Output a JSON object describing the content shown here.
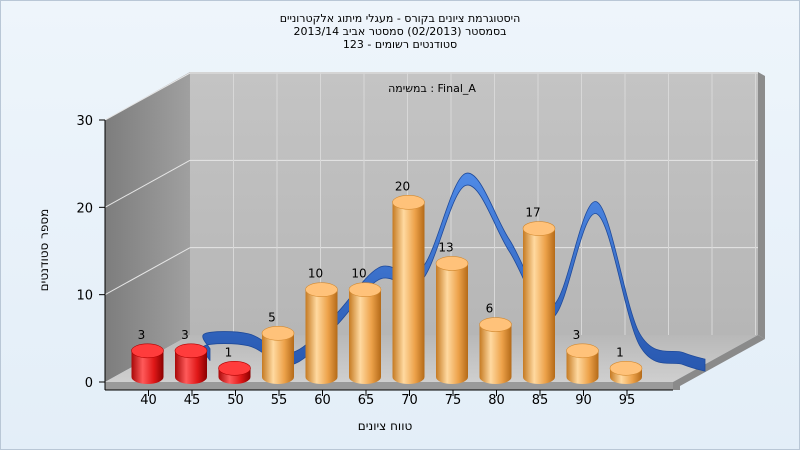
{
  "chart_data": {
    "type": "bar",
    "title_lines": [
      "היסטוגרמת ציונים בקורס - מעגלי מיתוג אלקטרוניים",
      "בסמסטר  (02/2013)  סמסטר אביב 2013/14",
      "סטודנטים רשומים - 123"
    ],
    "subtitle": "Final_A : במשימה",
    "xlabel": "טווח ציונים",
    "ylabel": "מספר סטודנטים",
    "ylim": [
      0,
      30
    ],
    "y_ticks": [
      "0",
      "10",
      "20",
      "30"
    ],
    "x_ticks": [
      "40",
      "45",
      "50",
      "55",
      "60",
      "65",
      "70",
      "75",
      "80",
      "85",
      "90",
      "95"
    ],
    "categories": [
      "40",
      "45",
      "50",
      "55",
      "60",
      "65",
      "70",
      "75",
      "80",
      "85",
      "90",
      "95"
    ],
    "values": [
      3,
      3,
      1,
      5,
      10,
      10,
      20,
      13,
      6,
      17,
      3,
      1
    ],
    "value_labels": [
      "3",
      "3",
      "1",
      "5",
      "10",
      "10",
      "20",
      "13",
      "6",
      "17",
      "3",
      "1"
    ],
    "failing_color": "#e01818",
    "passing_color": "#f0a850",
    "curve_color": "#2f6fd0",
    "grid": true,
    "style": "3d-cylinders"
  }
}
